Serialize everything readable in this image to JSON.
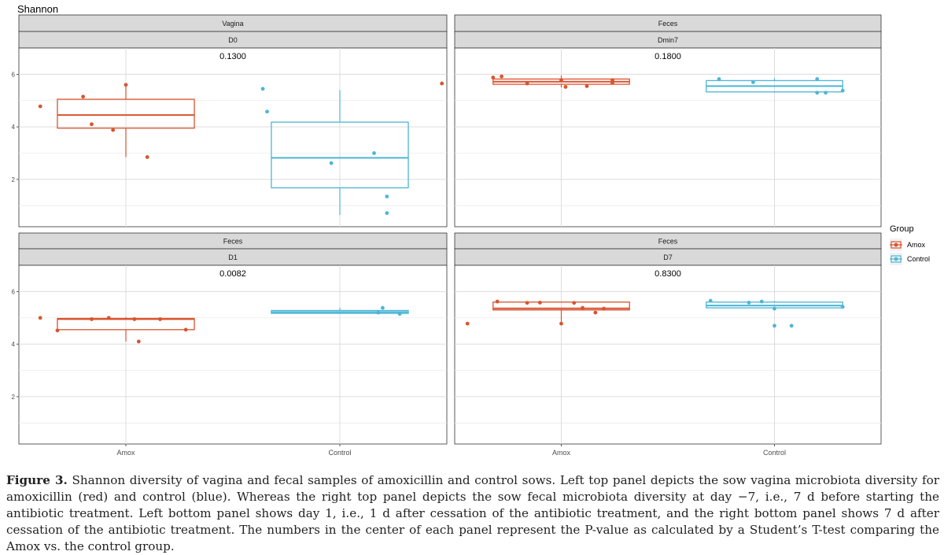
{
  "chart_data": {
    "type": "boxplot",
    "ylabel": "Shannon",
    "ylim": [
      0.2,
      7.0
    ],
    "yticks": [
      2,
      4,
      6
    ],
    "categories": [
      "Amox",
      "Control"
    ],
    "legend": {
      "title": "Group",
      "position": "right",
      "entries": [
        {
          "name": "Amox",
          "color": "#d8542f"
        },
        {
          "name": "Control",
          "color": "#4db6d6"
        }
      ]
    },
    "panels": [
      {
        "strip_top": "Vagina",
        "strip_bottom": "D0",
        "pvalue": "0.1300",
        "boxes": [
          {
            "group": "Amox",
            "q1": 3.95,
            "median": 4.45,
            "q3": 5.05,
            "whisker_low": 2.85,
            "whisker_high": 5.6,
            "points": [
              [
                -0.2,
                4.78
              ],
              [
                -0.1,
                5.15
              ],
              [
                -0.08,
                4.1
              ],
              [
                -0.03,
                3.88
              ],
              [
                0.0,
                5.6
              ],
              [
                0.05,
                2.85
              ]
            ]
          },
          {
            "group": "Control",
            "q1": 1.68,
            "median": 2.82,
            "q3": 4.18,
            "whisker_low": 0.65,
            "whisker_high": 5.4,
            "points": [
              [
                -0.18,
                5.45
              ],
              [
                -0.17,
                4.58
              ],
              [
                -0.02,
                2.62
              ],
              [
                0.08,
                3.0
              ],
              [
                0.11,
                1.35
              ],
              [
                0.11,
                0.72
              ]
            ]
          }
        ]
      },
      {
        "strip_top": "Feces",
        "strip_bottom": "Dmin7",
        "pvalue": "0.1800",
        "boxes": [
          {
            "group": "Amox",
            "q1": 5.62,
            "median": 5.72,
            "q3": 5.82,
            "whisker_low": 5.5,
            "whisker_high": 5.95,
            "points": [
              [
                -0.28,
                5.65
              ],
              [
                -0.16,
                5.88
              ],
              [
                -0.14,
                5.92
              ],
              [
                -0.08,
                5.65
              ],
              [
                0.0,
                5.78
              ],
              [
                0.01,
                5.52
              ],
              [
                0.06,
                5.55
              ],
              [
                0.12,
                5.78
              ],
              [
                0.12,
                5.68
              ]
            ]
          },
          {
            "group": "Control",
            "q1": 5.33,
            "median": 5.55,
            "q3": 5.76,
            "whisker_low": 5.3,
            "whisker_high": 5.85,
            "points": [
              [
                -0.13,
                5.82
              ],
              [
                -0.05,
                5.7
              ],
              [
                0.1,
                5.82
              ],
              [
                0.1,
                5.3
              ],
              [
                0.12,
                5.3
              ],
              [
                0.16,
                5.38
              ]
            ]
          }
        ]
      },
      {
        "strip_top": "Feces",
        "strip_bottom": "D1",
        "pvalue": "0.0082",
        "boxes": [
          {
            "group": "Amox",
            "q1": 4.55,
            "median": 4.95,
            "q3": 4.98,
            "whisker_low": 4.1,
            "whisker_high": 5.02,
            "points": [
              [
                -0.2,
                5.0
              ],
              [
                -0.16,
                4.52
              ],
              [
                -0.08,
                4.95
              ],
              [
                -0.04,
                5.0
              ],
              [
                0.02,
                4.95
              ],
              [
                0.03,
                4.1
              ],
              [
                0.08,
                4.95
              ],
              [
                0.14,
                4.55
              ]
            ]
          },
          {
            "group": "Control",
            "q1": 5.17,
            "median": 5.22,
            "q3": 5.28,
            "whisker_low": 5.15,
            "whisker_high": 5.38,
            "points": [
              [
                0.09,
                5.2
              ],
              [
                0.1,
                5.38
              ],
              [
                0.14,
                5.15
              ]
            ]
          }
        ]
      },
      {
        "strip_top": "Feces",
        "strip_bottom": "D7",
        "pvalue": "0.8300",
        "boxes": [
          {
            "group": "Amox",
            "q1": 5.3,
            "median": 5.36,
            "q3": 5.6,
            "whisker_low": 4.78,
            "whisker_high": 5.6,
            "points": [
              [
                -0.22,
                4.78
              ],
              [
                -0.15,
                5.62
              ],
              [
                -0.08,
                5.57
              ],
              [
                -0.05,
                5.58
              ],
              [
                0.0,
                4.78
              ],
              [
                0.03,
                5.57
              ],
              [
                0.05,
                5.38
              ],
              [
                0.08,
                5.2
              ],
              [
                0.1,
                5.35
              ]
            ]
          },
          {
            "group": "Control",
            "q1": 5.38,
            "median": 5.47,
            "q3": 5.6,
            "whisker_low": 5.35,
            "whisker_high": 5.65,
            "points": [
              [
                -0.15,
                5.65
              ],
              [
                -0.06,
                5.58
              ],
              [
                -0.03,
                5.62
              ],
              [
                0.0,
                5.35
              ],
              [
                0.0,
                4.7
              ],
              [
                0.04,
                4.7
              ],
              [
                0.16,
                5.42
              ]
            ]
          }
        ]
      }
    ]
  },
  "caption": {
    "label": "Figure 3.",
    "text": "Shannon diversity of vagina and fecal samples of amoxicillin and control sows. Left top panel depicts the sow vagina microbiota diversity for amoxicillin (red) and control (blue). Whereas the right top panel depicts the sow fecal microbiota diversity at day −7, i.e., 7 d before starting the antibiotic treatment. Left bottom panel shows day 1, i.e., 1 d after cessation of the antibiotic treatment, and the right bottom panel shows 7 d after cessation of the antibiotic treatment. The numbers in the center of each panel represent the P-value as calculated by a Student’s T-test comparing the Amox vs. the control group."
  }
}
